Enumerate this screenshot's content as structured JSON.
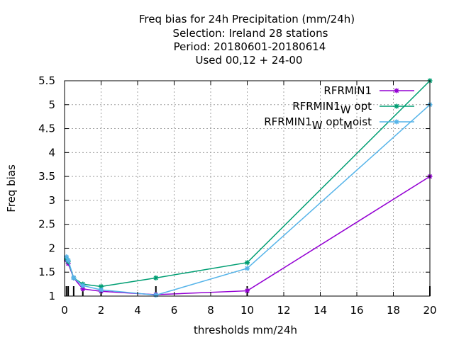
{
  "chart_data": {
    "type": "line",
    "title_lines": [
      "Freq bias  for 24h Precipitation (mm/24h)",
      "Selection: Ireland      28 stations",
      "Period: 20180601-20180614",
      "Used  00,12  + 24-00"
    ],
    "xlabel": "thresholds mm/24h",
    "ylabel": "Freq bias",
    "xlim": [
      0,
      20
    ],
    "ylim": [
      1,
      5.5
    ],
    "xticks": [
      0,
      2,
      4,
      6,
      8,
      10,
      12,
      14,
      16,
      18,
      20
    ],
    "yticks": [
      1,
      1.5,
      2,
      2.5,
      3,
      3.5,
      4,
      4.5,
      5,
      5.5
    ],
    "grid": true,
    "legend_position": "top-right",
    "series": [
      {
        "name": "RFRMIN1",
        "legend": {
          "base": "RFRMIN1",
          "parts": []
        },
        "color": "#9400d3",
        "x": [
          0.1,
          0.2,
          0.5,
          1,
          2,
          5,
          10,
          20
        ],
        "y": [
          1.75,
          1.68,
          1.38,
          1.15,
          1.1,
          1.03,
          1.11,
          3.5
        ]
      },
      {
        "name": "RFRMIN1_W opt",
        "legend": {
          "base": "RFRMIN1",
          "parts": [
            {
              "sub": "W"
            },
            {
              "text": " opt"
            }
          ]
        },
        "color": "#009e73",
        "x": [
          0.1,
          0.2,
          0.5,
          1,
          2,
          5,
          10,
          20
        ],
        "y": [
          1.78,
          1.72,
          1.38,
          1.25,
          1.2,
          1.38,
          1.7,
          5.5
        ]
      },
      {
        "name": "RFRMIN1_W opt_M oist",
        "legend": {
          "base": "RFRMIN1",
          "parts": [
            {
              "sub": "W"
            },
            {
              "text": " opt"
            },
            {
              "sub": "M"
            },
            {
              "text": "oist"
            }
          ]
        },
        "color": "#56b4e9",
        "x": [
          0.1,
          0.2,
          0.5,
          1,
          2,
          5,
          10,
          20
        ],
        "y": [
          1.82,
          1.75,
          1.38,
          1.22,
          1.13,
          1.02,
          1.58,
          5.0
        ]
      }
    ],
    "obs_ticks_x": [
      0.1,
      0.2,
      0.5,
      1,
      2,
      5,
      10,
      20
    ]
  }
}
